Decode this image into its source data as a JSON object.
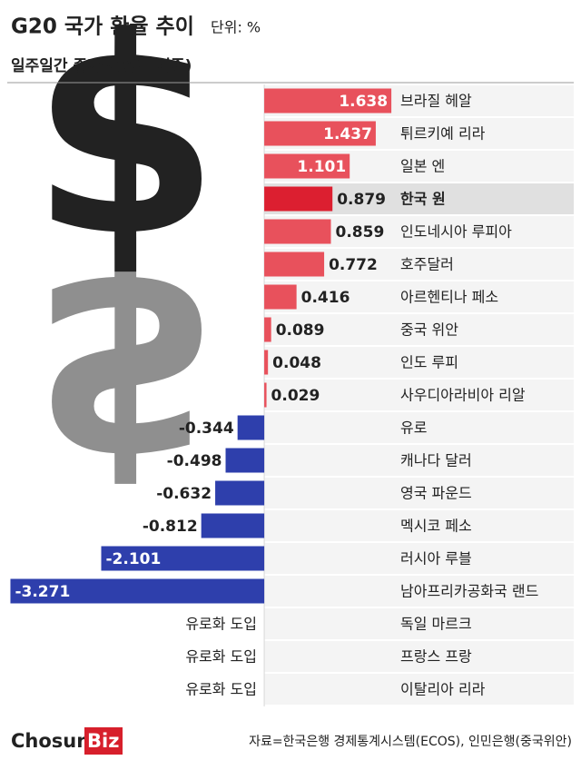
{
  "chart_data": {
    "type": "bar",
    "orientation": "horizontal",
    "title": "G20 국가 환율 추이",
    "unit": "단위: %",
    "subtitle": "일주일간 증가율(종가 기준)",
    "categories": [
      "브라질 헤알",
      "튀르키예 리라",
      "일본 엔",
      "한국 원",
      "인도네시아 루피아",
      "호주달러",
      "아르헨티나 페소",
      "중국 위안",
      "인도 루피",
      "사우디아라비아 리알",
      "유로",
      "캐나다 달러",
      "영국 파운드",
      "멕시코 페소",
      "러시아 루블",
      "남아프리카공화국 랜드",
      "독일 마르크",
      "프랑스 프랑",
      "이탈리아 리라"
    ],
    "values": [
      1.638,
      1.437,
      1.101,
      0.879,
      0.859,
      0.772,
      0.416,
      0.089,
      0.048,
      0.029,
      -0.344,
      -0.498,
      -0.632,
      -0.812,
      -2.101,
      -3.271,
      null,
      null,
      null
    ],
    "value_labels": [
      "1.638",
      "1.437",
      "1.101",
      "0.879",
      "0.859",
      "0.772",
      "0.416",
      "0.089",
      "0.048",
      "0.029",
      "-0.344",
      "-0.498",
      "-0.632",
      "-0.812",
      "-2.101",
      "-3.271",
      "유로화 도입",
      "유로화 도입",
      "유로화 도입"
    ],
    "colors": [
      "#e8515c",
      "#e8515c",
      "#e8515c",
      "#dc1f30",
      "#e8515c",
      "#e8515c",
      "#e8515c",
      "#e8515c",
      "#e8515c",
      "#e8515c",
      "#2e3fac",
      "#2e3fac",
      "#2e3fac",
      "#2e3fac",
      "#2e3fac",
      "#2e3fac",
      null,
      null,
      null
    ],
    "highlight": 3,
    "xlim": [
      -3.3,
      4.0
    ],
    "source": "자료=한국은행 경제통계시스템(ECOS), 인민은행(중국위안)",
    "logo": {
      "main": "Chosun",
      "accent": "Biz"
    }
  }
}
